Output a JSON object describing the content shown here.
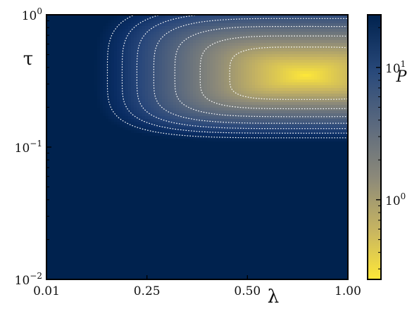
{
  "chart_data": {
    "type": "heatmap",
    "xlabel": "λ",
    "ylabel": "τ",
    "x_ticks": [
      "0.01",
      "0.25",
      "0.50",
      "1.00"
    ],
    "x_tick_values": [
      0.01,
      0.25,
      0.5,
      1.0
    ],
    "xlim": [
      0.01,
      1.0
    ],
    "y_scale": "log",
    "y_ticks": [
      {
        "base": "10",
        "exp": "−2",
        "value": 0.01
      },
      {
        "base": "10",
        "exp": "−1",
        "value": 0.1
      },
      {
        "base": "10",
        "exp": "0",
        "value": 1.0
      }
    ],
    "ylim": [
      0.01,
      1.0
    ],
    "colorbar": {
      "label": "P",
      "scale": "log",
      "reversed_colormap": "cividis",
      "ticks": [
        {
          "base": "10",
          "exp": "0",
          "value": 1
        },
        {
          "base": "10",
          "exp": "1",
          "value": 10
        }
      ],
      "range": [
        0.25,
        25
      ]
    },
    "contour_style": "white dotted",
    "peak": {
      "lambda": 0.9,
      "tau": 0.3
    },
    "colors": {
      "high": "#00224e",
      "low": "#fee838"
    }
  }
}
